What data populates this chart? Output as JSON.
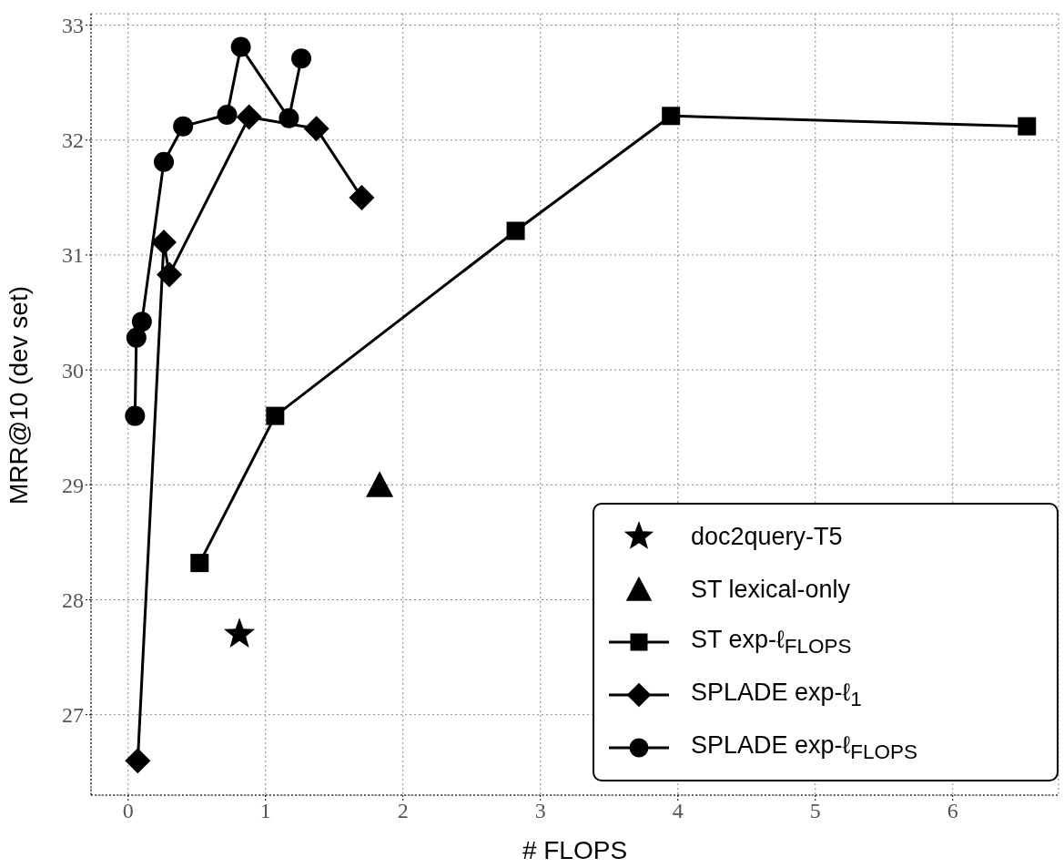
{
  "chart_data": {
    "type": "line",
    "xlabel": "# FLOPS",
    "ylabel": "MRR@10 (dev set)",
    "xlim": [
      -0.27,
      6.77
    ],
    "ylim": [
      26.3,
      33.1
    ],
    "xticks": [
      0,
      1,
      2,
      3,
      4,
      5,
      6
    ],
    "yticks": [
      27,
      28,
      29,
      30,
      31,
      32,
      33
    ],
    "grid": true,
    "legend": "bottom right",
    "series": [
      {
        "name": "doc2query-T5",
        "type": "scatter",
        "marker": "star",
        "color": "#000000",
        "x": [
          0.81
        ],
        "values": [
          27.7
        ]
      },
      {
        "name": "ST lexical-only",
        "type": "scatter",
        "marker": "triangle",
        "color": "#000000",
        "x": [
          1.83
        ],
        "values": [
          29.0
        ]
      },
      {
        "name": "ST exp-ℓ$_{FLOPS}$",
        "type": "line",
        "marker": "square",
        "color": "#000000",
        "x": [
          0.52,
          1.07,
          2.82,
          3.95,
          6.54
        ],
        "values": [
          28.32,
          29.6,
          31.21,
          32.21,
          32.12
        ]
      },
      {
        "name": "SPLADE exp-ℓ$_{1}$",
        "type": "line",
        "marker": "diamond",
        "color": "#000000",
        "x": [
          0.07,
          0.26,
          0.3,
          0.88,
          1.37,
          1.7
        ],
        "values": [
          26.6,
          31.11,
          30.83,
          32.2,
          32.1,
          31.5
        ]
      },
      {
        "name": "SPLADE exp-ℓ$_{FLOPS}$",
        "type": "line",
        "marker": "circle",
        "color": "#000000",
        "x": [
          0.05,
          0.06,
          0.1,
          0.26,
          0.4,
          0.72,
          0.82,
          1.17,
          1.26
        ],
        "values": [
          29.6,
          30.28,
          30.42,
          31.81,
          32.12,
          32.22,
          32.81,
          32.19,
          32.71
        ]
      }
    ]
  }
}
